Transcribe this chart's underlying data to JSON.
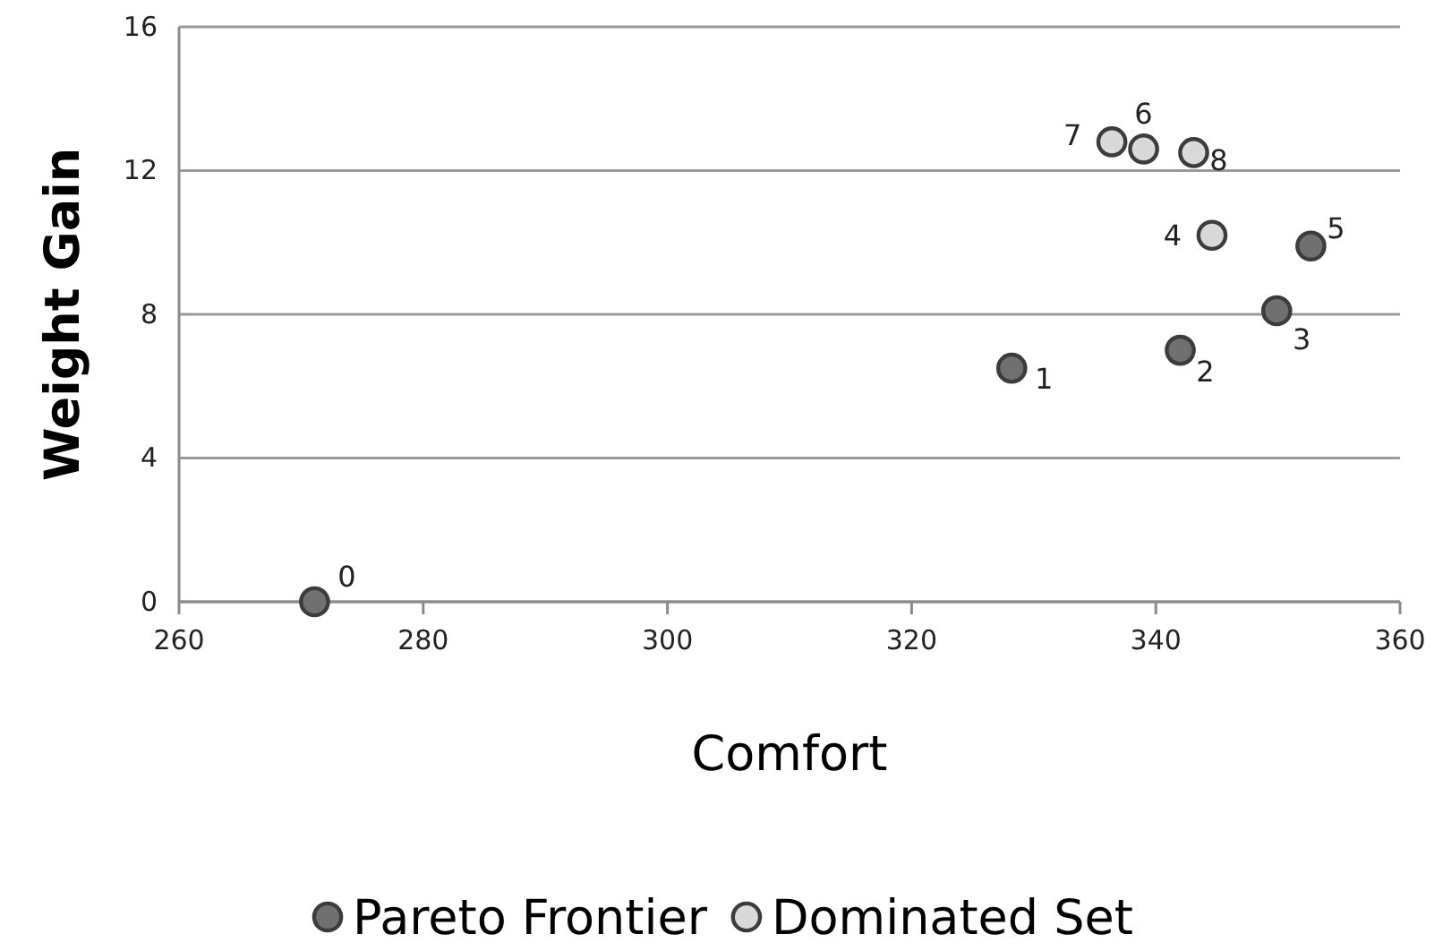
{
  "chart_data": {
    "type": "scatter",
    "xlabel": "Comfort",
    "ylabel": "Weight Gain",
    "series": [
      {
        "name": "Pareto Frontier",
        "color": "#707070",
        "x": [
          271.1,
          328.2,
          342.0,
          349.9,
          352.7
        ],
        "values": [
          0,
          6.5,
          7.0,
          8.1,
          9.9
        ]
      },
      {
        "name": "Dominated Set",
        "color": "#d9d9d9",
        "x": [
          344.6,
          339.0,
          336.4,
          343.1
        ],
        "values": [
          10.2,
          12.6,
          12.8,
          12.5
        ]
      }
    ],
    "annotations": [
      {
        "text": "0",
        "x": 271.1,
        "y": 0
      },
      {
        "text": "1",
        "x": 328.2,
        "y": 6.5
      },
      {
        "text": "2",
        "x": 342.0,
        "y": 7.0
      },
      {
        "text": "3",
        "x": 349.9,
        "y": 8.1
      },
      {
        "text": "4",
        "x": 344.6,
        "y": 10.2
      },
      {
        "text": "5",
        "x": 352.7,
        "y": 9.9
      },
      {
        "text": "6",
        "x": 339.0,
        "y": 12.6
      },
      {
        "text": "7",
        "x": 336.4,
        "y": 12.8
      },
      {
        "text": "8",
        "x": 343.1,
        "y": 12.5
      }
    ],
    "xlim": [
      260,
      360
    ],
    "xticks": [
      260,
      280,
      300,
      320,
      340,
      360
    ],
    "ylim": [
      0,
      16
    ],
    "yticks": [
      0,
      4,
      8,
      12,
      16
    ],
    "grid": "y",
    "legend": "bottom",
    "marker": "circle"
  }
}
